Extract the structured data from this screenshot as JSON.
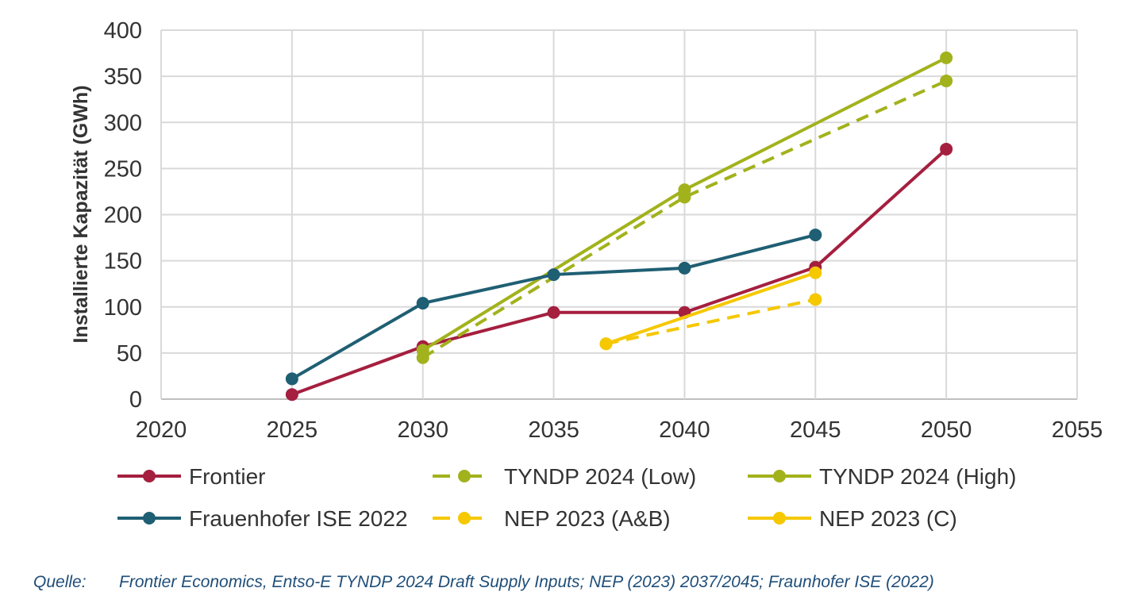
{
  "chart_data": {
    "type": "line",
    "title": "",
    "xlabel": "",
    "ylabel": "Installierte Kapazität (GWh)",
    "xlim": [
      2020,
      2055
    ],
    "ylim": [
      0,
      400
    ],
    "x_ticks": [
      "2020",
      "2025",
      "2030",
      "2035",
      "2040",
      "2045",
      "2050",
      "2055"
    ],
    "y_ticks": [
      "0",
      "50",
      "100",
      "150",
      "200",
      "250",
      "300",
      "350",
      "400"
    ],
    "grid": true,
    "legend_position": "bottom",
    "series": [
      {
        "name": "Frontier",
        "color": "#a51f3f",
        "dashed": false,
        "points": [
          [
            2025,
            5
          ],
          [
            2030,
            57
          ],
          [
            2035,
            94
          ],
          [
            2040,
            94
          ],
          [
            2045,
            143
          ],
          [
            2050,
            271
          ]
        ]
      },
      {
        "name": "TYNDP 2024 (Low)",
        "color": "#a2b21c",
        "dashed": true,
        "points": [
          [
            2030,
            45
          ],
          [
            2040,
            219
          ],
          [
            2050,
            345
          ]
        ]
      },
      {
        "name": "TYNDP 2024 (High)",
        "color": "#a2b21c",
        "dashed": false,
        "points": [
          [
            2030,
            53
          ],
          [
            2040,
            227
          ],
          [
            2050,
            370
          ]
        ]
      },
      {
        "name": "Frauenhofer ISE 2022",
        "color": "#1f5f73",
        "dashed": false,
        "points": [
          [
            2025,
            22
          ],
          [
            2030,
            104
          ],
          [
            2035,
            135
          ],
          [
            2040,
            142
          ],
          [
            2045,
            178
          ]
        ]
      },
      {
        "name": "NEP 2023 (A&B)",
        "color": "#f5c800",
        "dashed": true,
        "points": [
          [
            2037,
            60
          ],
          [
            2045,
            108
          ]
        ]
      },
      {
        "name": "NEP 2023 (C)",
        "color": "#f5c800",
        "dashed": false,
        "points": [
          [
            2037,
            60
          ],
          [
            2045,
            137
          ]
        ]
      }
    ]
  },
  "source": {
    "label": "Quelle:",
    "text": "Frontier Economics, Entso-E TYNDP 2024 Draft Supply Inputs; NEP (2023) 2037/2045; Fraunhofer ISE (2022)"
  }
}
